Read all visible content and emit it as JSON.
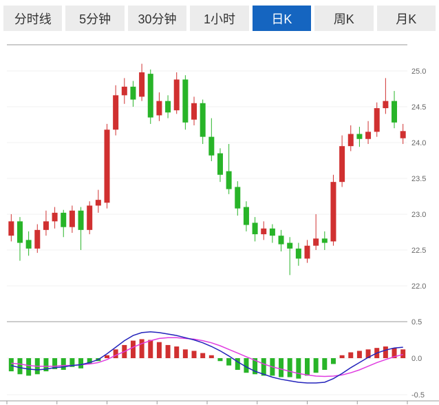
{
  "tabs": {
    "items": [
      {
        "label": "分时线",
        "active": false
      },
      {
        "label": "5分钟",
        "active": false
      },
      {
        "label": "30分钟",
        "active": false
      },
      {
        "label": "1小时",
        "active": false
      },
      {
        "label": "日K",
        "active": true
      },
      {
        "label": "周K",
        "active": false
      },
      {
        "label": "月K",
        "active": false
      }
    ]
  },
  "colors": {
    "up": "#d03030",
    "down": "#28b428",
    "dif_line": "#2323bb",
    "dea_line": "#e03ce0",
    "grid": "#f0f0f0",
    "border": "#999999",
    "axis_text": "#666666",
    "tab_bg": "#ececec",
    "tab_text": "#333333",
    "active_tab_bg": "#1565c0",
    "active_tab_text": "#ffffff"
  },
  "chart_data": [
    {
      "type": "candlestick",
      "title": "",
      "yticks": [
        "25.0",
        "24.5",
        "24.0",
        "23.5",
        "23.0",
        "22.5",
        "22.0"
      ],
      "ylim": [
        21.9,
        25.37
      ],
      "ohlc": [
        [
          22.7,
          23.0,
          22.62,
          22.9
        ],
        [
          22.9,
          22.96,
          22.35,
          22.6
        ],
        [
          22.64,
          22.76,
          22.42,
          22.52
        ],
        [
          22.52,
          22.86,
          22.46,
          22.78
        ],
        [
          22.78,
          23.05,
          22.7,
          22.9
        ],
        [
          22.9,
          23.1,
          22.8,
          23.02
        ],
        [
          23.02,
          23.06,
          22.68,
          22.82
        ],
        [
          22.82,
          23.12,
          22.74,
          23.05
        ],
        [
          23.05,
          23.1,
          22.5,
          22.78
        ],
        [
          22.78,
          23.18,
          22.72,
          23.12
        ],
        [
          23.12,
          23.34,
          23.02,
          23.2
        ],
        [
          23.16,
          24.26,
          23.08,
          24.18
        ],
        [
          24.18,
          24.8,
          24.1,
          24.66
        ],
        [
          24.66,
          24.9,
          24.54,
          24.78
        ],
        [
          24.78,
          24.86,
          24.5,
          24.6
        ],
        [
          24.64,
          25.1,
          24.58,
          24.98
        ],
        [
          24.96,
          25.02,
          24.26,
          24.35
        ],
        [
          24.38,
          24.7,
          24.3,
          24.58
        ],
        [
          24.58,
          24.66,
          24.34,
          24.42
        ],
        [
          24.45,
          24.98,
          24.4,
          24.88
        ],
        [
          24.88,
          24.94,
          24.18,
          24.28
        ],
        [
          24.32,
          24.64,
          24.24,
          24.55
        ],
        [
          24.55,
          24.6,
          23.98,
          24.08
        ],
        [
          24.08,
          24.34,
          23.74,
          23.82
        ],
        [
          23.85,
          23.92,
          23.45,
          23.55
        ],
        [
          23.6,
          23.98,
          23.28,
          23.35
        ],
        [
          23.38,
          23.46,
          22.98,
          23.08
        ],
        [
          23.1,
          23.18,
          22.76,
          22.85
        ],
        [
          22.88,
          22.96,
          22.62,
          22.72
        ],
        [
          22.72,
          22.9,
          22.64,
          22.8
        ],
        [
          22.8,
          22.86,
          22.6,
          22.7
        ],
        [
          22.7,
          22.78,
          22.48,
          22.58
        ],
        [
          22.6,
          22.68,
          22.15,
          22.52
        ],
        [
          22.52,
          22.6,
          22.28,
          22.38
        ],
        [
          22.38,
          22.64,
          22.32,
          22.56
        ],
        [
          22.56,
          23.0,
          22.5,
          22.66
        ],
        [
          22.66,
          22.76,
          22.5,
          22.6
        ],
        [
          22.62,
          23.55,
          22.56,
          23.45
        ],
        [
          23.45,
          24.1,
          23.38,
          23.95
        ],
        [
          23.95,
          24.24,
          23.88,
          24.12
        ],
        [
          24.12,
          24.22,
          23.94,
          24.05
        ],
        [
          24.05,
          24.3,
          23.98,
          24.15
        ],
        [
          24.15,
          24.56,
          24.08,
          24.48
        ],
        [
          24.48,
          24.9,
          24.4,
          24.58
        ],
        [
          24.58,
          24.72,
          24.2,
          24.28
        ],
        [
          24.06,
          24.26,
          23.98,
          24.16
        ]
      ]
    },
    {
      "type": "macd",
      "yticks": [
        "0.5",
        "0.0",
        "-0.5"
      ],
      "ylim": [
        -0.62,
        0.62
      ],
      "histogram": [
        -0.18,
        -0.22,
        -0.24,
        -0.22,
        -0.18,
        -0.15,
        -0.16,
        -0.12,
        -0.14,
        -0.08,
        -0.04,
        0.04,
        0.12,
        0.18,
        0.24,
        0.26,
        0.25,
        0.22,
        0.18,
        0.16,
        0.12,
        0.1,
        0.07,
        0.04,
        -0.04,
        -0.1,
        -0.16,
        -0.2,
        -0.22,
        -0.24,
        -0.24,
        -0.26,
        -0.26,
        -0.28,
        -0.24,
        -0.2,
        -0.16,
        -0.08,
        0.04,
        0.08,
        0.1,
        0.12,
        0.14,
        0.16,
        0.14,
        0.12
      ],
      "dif": [
        -0.1,
        -0.13,
        -0.15,
        -0.16,
        -0.15,
        -0.13,
        -0.12,
        -0.1,
        -0.09,
        -0.06,
        -0.02,
        0.06,
        0.15,
        0.24,
        0.31,
        0.35,
        0.36,
        0.35,
        0.33,
        0.31,
        0.28,
        0.25,
        0.21,
        0.16,
        0.1,
        0.03,
        -0.05,
        -0.12,
        -0.18,
        -0.22,
        -0.26,
        -0.29,
        -0.31,
        -0.33,
        -0.34,
        -0.34,
        -0.33,
        -0.28,
        -0.21,
        -0.13,
        -0.06,
        0.01,
        0.07,
        0.11,
        0.14,
        0.15
      ],
      "dea": [
        -0.07,
        -0.08,
        -0.1,
        -0.11,
        -0.11,
        -0.11,
        -0.1,
        -0.1,
        -0.09,
        -0.08,
        -0.06,
        -0.02,
        0.04,
        0.09,
        0.15,
        0.2,
        0.24,
        0.27,
        0.28,
        0.28,
        0.27,
        0.26,
        0.24,
        0.21,
        0.17,
        0.12,
        0.07,
        0.02,
        -0.03,
        -0.08,
        -0.12,
        -0.15,
        -0.18,
        -0.21,
        -0.23,
        -0.245,
        -0.25,
        -0.245,
        -0.23,
        -0.2,
        -0.16,
        -0.11,
        -0.06,
        -0.02,
        0.02,
        0.05
      ]
    }
  ]
}
